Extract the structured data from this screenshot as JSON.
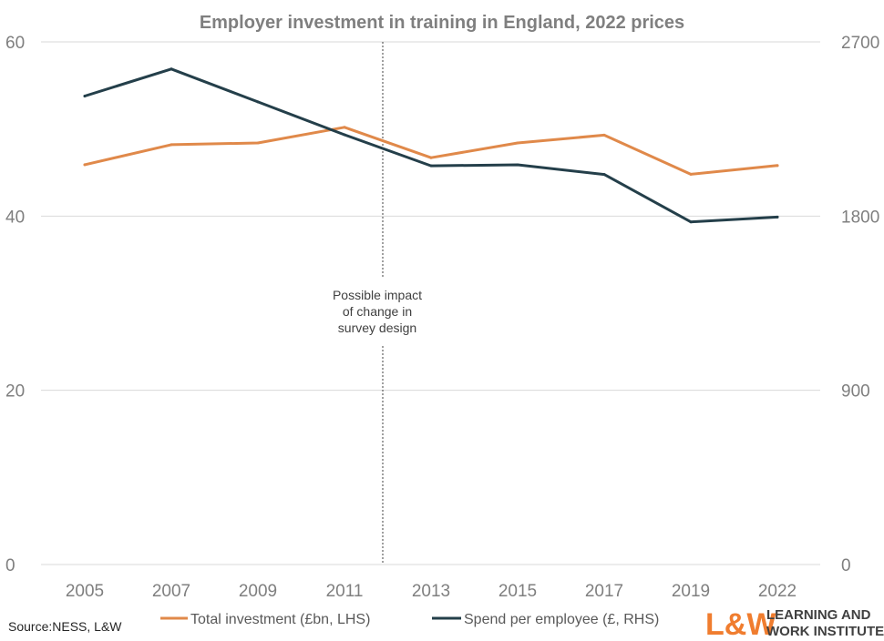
{
  "chart_data": {
    "type": "line",
    "title": "Employer investment in training in England, 2022 prices",
    "categories": [
      "2005",
      "2007",
      "2009",
      "2011",
      "2013",
      "2015",
      "2017",
      "2019",
      "2022"
    ],
    "series": [
      {
        "name": "Total investment (£bn, LHS)",
        "axis": "left",
        "color": "#e0894a",
        "values": [
          45.9,
          48.2,
          48.4,
          50.2,
          46.7,
          48.4,
          49.3,
          44.8,
          45.8
        ]
      },
      {
        "name": "Spend per employee (£, RHS)",
        "axis": "right",
        "color": "#243f4a",
        "values": [
          2420,
          2560,
          2390,
          2220,
          2060,
          2065,
          2015,
          1770,
          1795
        ]
      }
    ],
    "y_left": {
      "min": 0,
      "max": 60,
      "ticks": [
        "0",
        "20",
        "40",
        "60"
      ]
    },
    "y_right": {
      "min": 0,
      "max": 2700,
      "ticks": [
        "0",
        "900",
        "1800",
        "2700"
      ]
    },
    "grid": true,
    "legend_position": "bottom",
    "annotation": {
      "lines": [
        "Possible impact",
        "of change in",
        "survey design"
      ],
      "x_between": [
        "2011",
        "2013"
      ]
    }
  },
  "footer": {
    "source": "Source:NESS, L&W",
    "logo_mark": "L&W",
    "logo_line1": "LEARNING AND",
    "logo_line2": "WORK INSTITUTE",
    "logo_color": "#f07d2f"
  }
}
